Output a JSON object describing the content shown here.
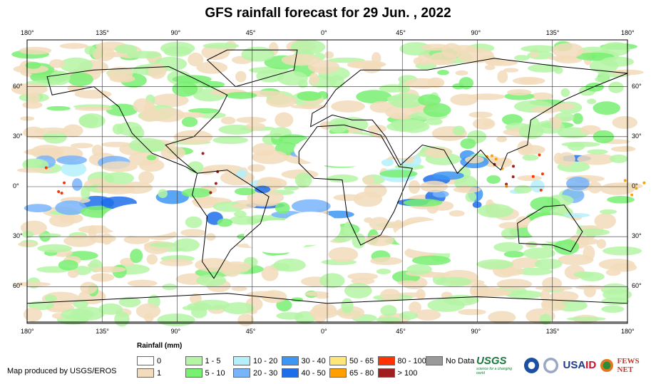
{
  "title": "GFS rainfall forecast for 29 Jun. , 2022",
  "lon_ticks": [
    "180°",
    "135°",
    "90°",
    "45°",
    "0°",
    "45°",
    "90°",
    "135°",
    "180°"
  ],
  "lat_ticks": [
    "60°",
    "30°",
    "0°",
    "30°",
    "60°"
  ],
  "legend": {
    "title": "Rainfall (mm)",
    "items": [
      {
        "label": "0",
        "color": "#ffffff"
      },
      {
        "label": "1",
        "color": "#f2dcbb"
      },
      {
        "label": "1 - 5",
        "color": "#b4f5a4"
      },
      {
        "label": "5 - 10",
        "color": "#78f072"
      },
      {
        "label": "10 - 20",
        "color": "#b4f0fa"
      },
      {
        "label": "20 - 30",
        "color": "#78b4fa"
      },
      {
        "label": "30 - 40",
        "color": "#3c96f5"
      },
      {
        "label": "40 - 50",
        "color": "#1e6eeb"
      },
      {
        "label": "50 - 65",
        "color": "#ffe678"
      },
      {
        "label": "65 - 80",
        "color": "#ffa000"
      },
      {
        "label": "80 - 100",
        "color": "#ff3200"
      },
      {
        "label": "> 100",
        "color": "#a01e1e"
      },
      {
        "label": "No Data",
        "color": "#999999"
      }
    ]
  },
  "credit": "Map produced by USGS/EROS",
  "logos": {
    "usgs": "USGS",
    "usgs_tagline": "science for a changing world",
    "usaid_a": "USA",
    "usaid_b": "ID",
    "fews": "FEWS NET"
  }
}
